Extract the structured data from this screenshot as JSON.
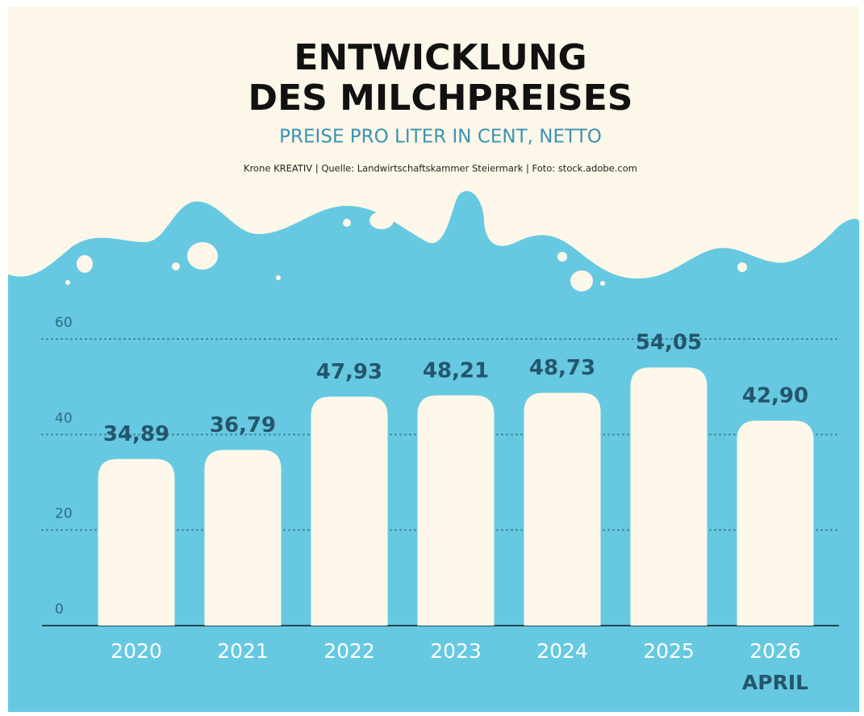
{
  "chart_data": {
    "type": "bar",
    "title": [
      "ENTWICKLUNG",
      "DES MILCHPREISES"
    ],
    "subtitle": "PREISE PRO LITER IN CENT, NETTO",
    "source": "Krone KREATIV | Quelle: Landwirtschaftskammer Steiermark | Foto: stock.adobe.com",
    "categories": [
      "2020",
      "2021",
      "2022",
      "2023",
      "2024",
      "2025",
      "2026"
    ],
    "values": [
      34.89,
      36.79,
      47.93,
      48.21,
      48.73,
      54.05,
      42.9
    ],
    "value_labels": [
      "34,89",
      "36,79",
      "47,93",
      "48,21",
      "48,73",
      "54,05",
      "42,90"
    ],
    "annotations": [
      {
        "category": 6,
        "text": "APRIL"
      }
    ],
    "color": "#fdf8ea",
    "ylim": [
      0,
      60
    ],
    "yticks": [
      0,
      20,
      40,
      60
    ],
    "grid": true
  }
}
